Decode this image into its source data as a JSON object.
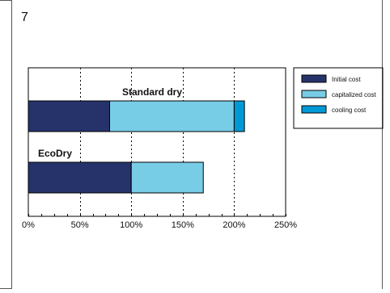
{
  "slide": {
    "number": "7"
  },
  "chart_data": {
    "type": "bar",
    "orientation": "horizontal",
    "stacked": true,
    "categories": [
      "Standard dry",
      "EcoDry"
    ],
    "series": [
      {
        "name": "Initial cost",
        "color": "#26336b",
        "values": [
          79,
          100
        ]
      },
      {
        "name": "capitalized cost",
        "color": "#78cde6",
        "values": [
          121,
          70
        ]
      },
      {
        "name": "cooling cost",
        "color": "#0099d6",
        "values": [
          10,
          0
        ]
      }
    ],
    "xlim": [
      0,
      250
    ],
    "xticks": [
      "0%",
      "50%",
      "100%",
      "150%",
      "200%",
      "250%"
    ],
    "grid": "vertical dotted",
    "legend_position": "right"
  }
}
